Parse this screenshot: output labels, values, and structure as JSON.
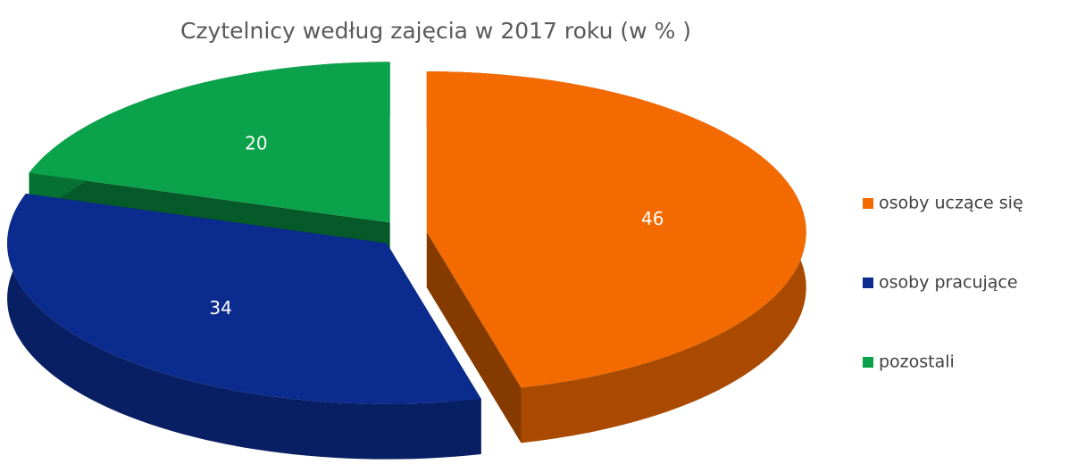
{
  "chart_data": {
    "type": "pie",
    "title": "Czytelnicy według zajęcia w 2017 roku (w % )",
    "categories": [
      "osoby uczące się",
      "osoby pracujące",
      "pozostali"
    ],
    "values": [
      46,
      34,
      20
    ],
    "colors": [
      "#f26a00",
      "#0b2c8e",
      "#0aa24a"
    ],
    "legend": "right"
  }
}
